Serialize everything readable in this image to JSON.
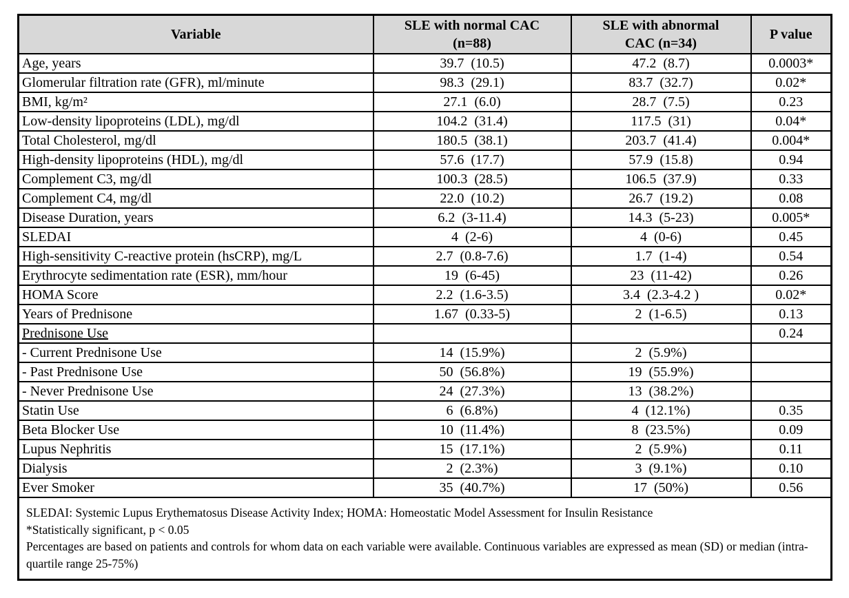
{
  "colors": {
    "header_bg": "#d8d8d8",
    "border": "#000000",
    "text": "#000000"
  },
  "table": {
    "columns": [
      "Variable",
      "SLE with normal CAC\n(n=88)",
      "SLE with abnormal\nCAC (n=34)",
      "P value"
    ],
    "rows": [
      {
        "variable": "Age, years",
        "normal": "39.7  (10.5)",
        "abnormal": "47.2  (8.7)",
        "p": "0.0003*",
        "underline": false
      },
      {
        "variable": "Glomerular filtration rate (GFR), ml/minute",
        "normal": "98.3  (29.1)",
        "abnormal": "83.7  (32.7)",
        "p": "0.02*",
        "underline": false
      },
      {
        "variable": "BMI, kg/m²",
        "normal": "27.1  (6.0)",
        "abnormal": "28.7  (7.5)",
        "p": "0.23",
        "underline": false
      },
      {
        "variable": "Low-density lipoproteins (LDL), mg/dl",
        "normal": "104.2  (31.4)",
        "abnormal": "117.5  (31)",
        "p": "0.04*",
        "underline": false
      },
      {
        "variable": "Total Cholesterol, mg/dl",
        "normal": "180.5  (38.1)",
        "abnormal": "203.7  (41.4)",
        "p": "0.004*",
        "underline": false
      },
      {
        "variable": "High-density lipoproteins (HDL), mg/dl",
        "normal": "57.6  (17.7)",
        "abnormal": "57.9  (15.8)",
        "p": "0.94",
        "underline": false
      },
      {
        "variable": "Complement C3, mg/dl",
        "normal": "100.3  (28.5)",
        "abnormal": "106.5  (37.9)",
        "p": "0.33",
        "underline": false
      },
      {
        "variable": "Complement C4, mg/dl",
        "normal": "22.0  (10.2)",
        "abnormal": "26.7  (19.2)",
        "p": "0.08",
        "underline": false
      },
      {
        "variable": "Disease Duration, years",
        "normal": "6.2  (3-11.4)",
        "abnormal": "14.3  (5-23)",
        "p": "0.005*",
        "underline": false
      },
      {
        "variable": "SLEDAI",
        "normal": "4  (2-6)",
        "abnormal": "4  (0-6)",
        "p": "0.45",
        "underline": false
      },
      {
        "variable": "High-sensitivity C-reactive protein (hsCRP), mg/L",
        "normal": "2.7  (0.8-7.6)",
        "abnormal": "1.7  (1-4)",
        "p": "0.54",
        "underline": false
      },
      {
        "variable": "Erythrocyte sedimentation rate (ESR), mm/hour",
        "normal": "19  (6-45)",
        "abnormal": "23  (11-42)",
        "p": "0.26",
        "underline": false
      },
      {
        "variable": "HOMA Score",
        "normal": "2.2  (1.6-3.5)",
        "abnormal": "3.4  (2.3-4.2 )",
        "p": "0.02*",
        "underline": false
      },
      {
        "variable": "Years of Prednisone",
        "normal": "1.67  (0.33-5)",
        "abnormal": "2  (1-6.5)",
        "p": "0.13",
        "underline": false
      },
      {
        "variable": "Prednisone Use",
        "normal": "",
        "abnormal": "",
        "p": "0.24",
        "underline": true
      },
      {
        "variable": "- Current Prednisone Use",
        "normal": "14  (15.9%)",
        "abnormal": "2  (5.9%)",
        "p": "",
        "underline": false
      },
      {
        "variable": "- Past Prednisone Use",
        "normal": "50  (56.8%)",
        "abnormal": "19  (55.9%)",
        "p": "",
        "underline": false
      },
      {
        "variable": "- Never Prednisone Use",
        "normal": "24  (27.3%)",
        "abnormal": "13  (38.2%)",
        "p": "",
        "underline": false
      },
      {
        "variable": "Statin Use",
        "normal": "6  (6.8%)",
        "abnormal": "4  (12.1%)",
        "p": "0.35",
        "underline": false
      },
      {
        "variable": "Beta Blocker Use",
        "normal": "10  (11.4%)",
        "abnormal": "8  (23.5%)",
        "p": "0.09",
        "underline": false
      },
      {
        "variable": "Lupus Nephritis",
        "normal": "15  (17.1%)",
        "abnormal": "2  (5.9%)",
        "p": "0.11",
        "underline": false
      },
      {
        "variable": "Dialysis",
        "normal": "2  (2.3%)",
        "abnormal": "3  (9.1%)",
        "p": "0.10",
        "underline": false
      },
      {
        "variable": "Ever Smoker",
        "normal": "35  (40.7%)",
        "abnormal": "17  (50%)",
        "p": "0.56",
        "underline": false
      }
    ]
  },
  "footnotes": [
    "SLEDAI: Systemic Lupus Erythematosus Disease Activity Index; HOMA: Homeostatic Model Assessment for Insulin Resistance",
    "*Statistically significant, p < 0.05",
    "Percentages are based on patients and controls for whom data on each variable were available. Continuous variables are expressed as mean (SD) or median (intra-quartile range 25-75%)"
  ]
}
